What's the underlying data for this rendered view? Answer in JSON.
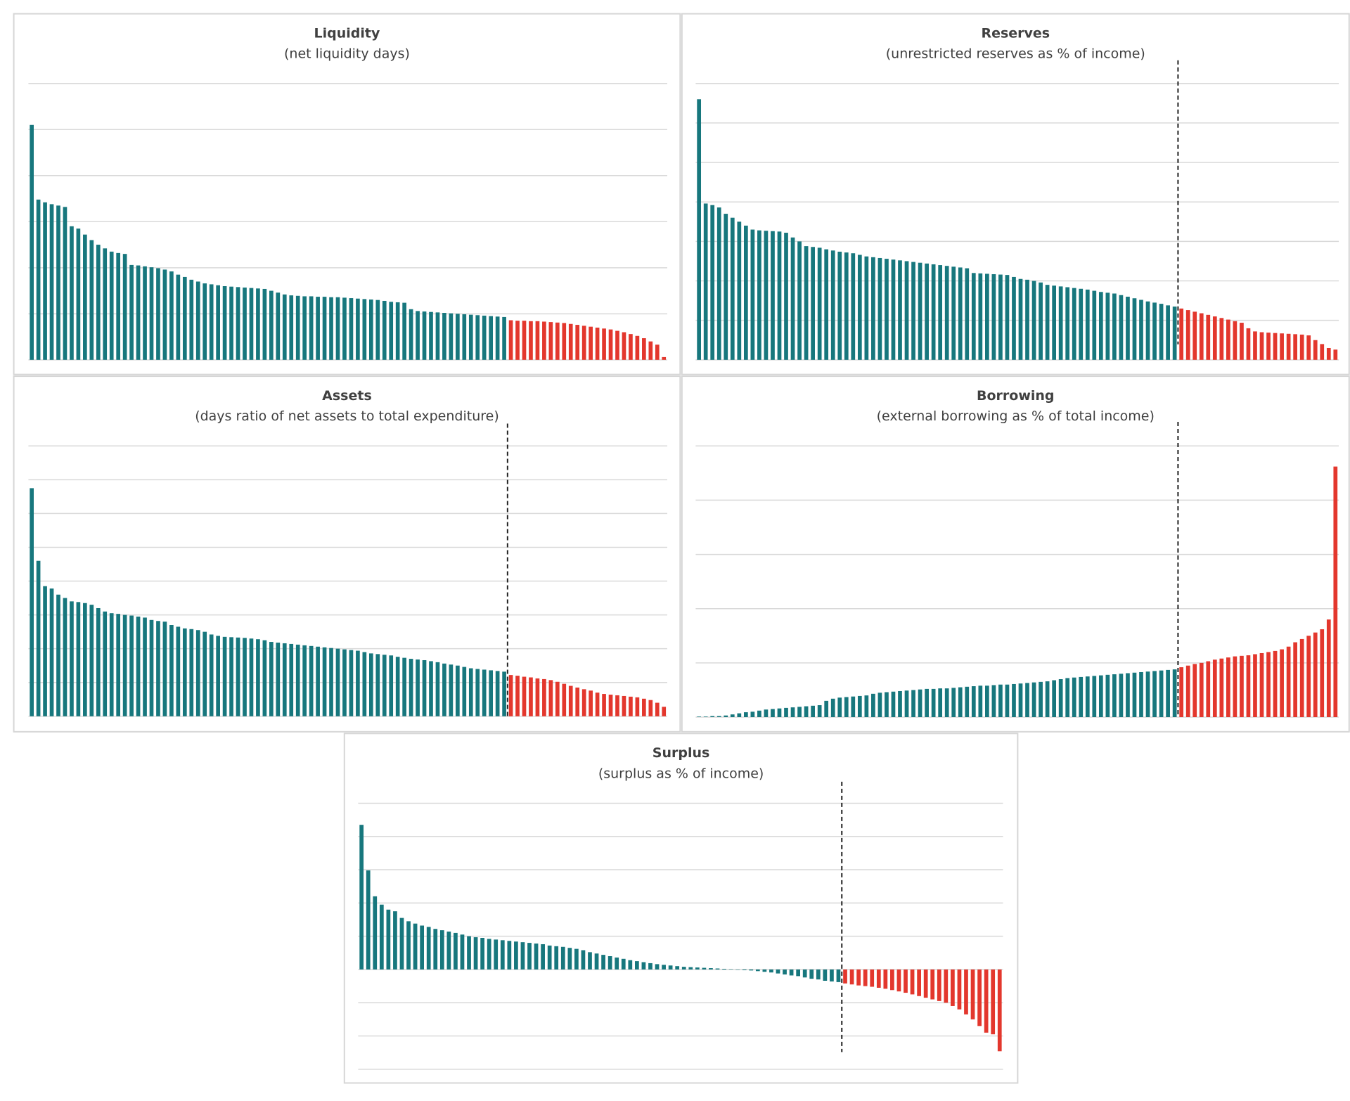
{
  "chart_data": [
    {
      "type": "bar",
      "title": "Liquidity",
      "subtitle": "(net liquidity days)",
      "ylim": [
        0,
        6
      ],
      "yticks": [
        0,
        1,
        2,
        3,
        4,
        5,
        6
      ],
      "grid": true,
      "divider": false,
      "series": [
        {
          "color": "#17777d",
          "values": [
            5.1,
            3.48,
            3.42,
            3.38,
            3.35,
            3.32,
            2.9,
            2.85,
            2.72,
            2.6,
            2.5,
            2.42,
            2.35,
            2.32,
            2.3,
            2.06,
            2.05,
            2.03,
            2.01,
            1.99,
            1.96,
            1.92,
            1.85,
            1.8,
            1.74,
            1.7,
            1.66,
            1.64,
            1.62,
            1.6,
            1.59,
            1.58,
            1.57,
            1.56,
            1.55,
            1.54,
            1.5,
            1.46,
            1.42,
            1.4,
            1.39,
            1.38,
            1.38,
            1.37,
            1.37,
            1.36,
            1.36,
            1.35,
            1.34,
            1.33,
            1.32,
            1.31,
            1.3,
            1.28,
            1.26,
            1.25,
            1.24,
            1.1,
            1.06,
            1.05,
            1.04,
            1.03,
            1.02,
            1.01,
            1.0,
            0.99,
            0.98,
            0.97,
            0.96,
            0.95,
            0.94,
            0.93
          ]
        },
        {
          "color": "#e3372d",
          "values": [
            0.86,
            0.85,
            0.85,
            0.84,
            0.84,
            0.83,
            0.82,
            0.81,
            0.8,
            0.78,
            0.76,
            0.74,
            0.72,
            0.7,
            0.68,
            0.66,
            0.63,
            0.6,
            0.56,
            0.52,
            0.47,
            0.4,
            0.33,
            0.06
          ]
        }
      ]
    },
    {
      "type": "bar",
      "title": "Reserves",
      "subtitle": "(unrestricted reserves as % of income)",
      "ylim": [
        0,
        7
      ],
      "yticks": [
        0,
        1,
        2,
        3,
        4,
        5,
        6,
        7
      ],
      "grid": true,
      "divider": true,
      "series": [
        {
          "color": "#17777d",
          "values": [
            6.6,
            3.96,
            3.92,
            3.86,
            3.7,
            3.6,
            3.5,
            3.4,
            3.3,
            3.28,
            3.27,
            3.26,
            3.25,
            3.22,
            3.1,
            3.0,
            2.88,
            2.86,
            2.84,
            2.8,
            2.77,
            2.74,
            2.72,
            2.7,
            2.66,
            2.62,
            2.6,
            2.58,
            2.56,
            2.54,
            2.52,
            2.5,
            2.48,
            2.46,
            2.44,
            2.42,
            2.4,
            2.38,
            2.36,
            2.34,
            2.32,
            2.2,
            2.19,
            2.18,
            2.17,
            2.16,
            2.15,
            2.1,
            2.05,
            2.03,
            2.0,
            1.96,
            1.9,
            1.88,
            1.86,
            1.84,
            1.82,
            1.8,
            1.78,
            1.75,
            1.72,
            1.7,
            1.68,
            1.64,
            1.6,
            1.56,
            1.52,
            1.48,
            1.45,
            1.42,
            1.38,
            1.35
          ]
        },
        {
          "color": "#e3372d",
          "values": [
            1.3,
            1.26,
            1.22,
            1.18,
            1.14,
            1.1,
            1.06,
            1.02,
            0.98,
            0.94,
            0.8,
            0.72,
            0.7,
            0.69,
            0.68,
            0.67,
            0.66,
            0.65,
            0.64,
            0.62,
            0.5,
            0.4,
            0.3,
            0.26
          ]
        }
      ]
    },
    {
      "type": "bar",
      "title": "Assets",
      "subtitle": "(days ratio of net assets to total expenditure)",
      "ylim": [
        0,
        8
      ],
      "yticks": [
        0,
        1,
        2,
        3,
        4,
        5,
        6,
        7,
        8
      ],
      "grid": true,
      "divider": true,
      "series": [
        {
          "color": "#17777d",
          "values": [
            6.75,
            4.6,
            3.85,
            3.78,
            3.6,
            3.5,
            3.4,
            3.38,
            3.35,
            3.3,
            3.2,
            3.1,
            3.05,
            3.03,
            3.0,
            2.98,
            2.95,
            2.92,
            2.85,
            2.82,
            2.8,
            2.7,
            2.65,
            2.6,
            2.58,
            2.55,
            2.5,
            2.42,
            2.38,
            2.35,
            2.34,
            2.33,
            2.32,
            2.3,
            2.28,
            2.25,
            2.2,
            2.18,
            2.16,
            2.14,
            2.12,
            2.1,
            2.08,
            2.06,
            2.04,
            2.02,
            2.0,
            1.98,
            1.96,
            1.94,
            1.9,
            1.86,
            1.84,
            1.82,
            1.8,
            1.76,
            1.73,
            1.7,
            1.68,
            1.66,
            1.63,
            1.6,
            1.56,
            1.53,
            1.5,
            1.46,
            1.42,
            1.4,
            1.38,
            1.36,
            1.34,
            1.32
          ]
        },
        {
          "color": "#e3372d",
          "values": [
            1.22,
            1.2,
            1.17,
            1.15,
            1.12,
            1.1,
            1.07,
            1.02,
            0.96,
            0.9,
            0.85,
            0.8,
            0.76,
            0.7,
            0.66,
            0.64,
            0.62,
            0.6,
            0.58,
            0.56,
            0.52,
            0.48,
            0.4,
            0.28
          ]
        }
      ]
    },
    {
      "type": "bar",
      "title": "Borrowing",
      "subtitle": "(external borrowing as % of total income)",
      "ylim": [
        0,
        5
      ],
      "yticks": [
        0,
        1,
        2,
        3,
        4,
        5
      ],
      "grid": true,
      "divider": true,
      "series": [
        {
          "color": "#17777d",
          "values": [
            0.01,
            0.01,
            0.02,
            0.02,
            0.03,
            0.05,
            0.07,
            0.09,
            0.1,
            0.12,
            0.14,
            0.15,
            0.16,
            0.17,
            0.18,
            0.19,
            0.2,
            0.21,
            0.22,
            0.3,
            0.34,
            0.36,
            0.37,
            0.38,
            0.39,
            0.4,
            0.43,
            0.45,
            0.46,
            0.47,
            0.48,
            0.49,
            0.5,
            0.51,
            0.52,
            0.52,
            0.53,
            0.53,
            0.54,
            0.55,
            0.56,
            0.57,
            0.58,
            0.58,
            0.59,
            0.6,
            0.6,
            0.61,
            0.62,
            0.63,
            0.64,
            0.65,
            0.66,
            0.68,
            0.7,
            0.72,
            0.73,
            0.74,
            0.75,
            0.76,
            0.77,
            0.78,
            0.79,
            0.8,
            0.81,
            0.82,
            0.83,
            0.84,
            0.85,
            0.86,
            0.87,
            0.88
          ]
        },
        {
          "color": "#e3372d",
          "values": [
            0.92,
            0.95,
            0.98,
            1.0,
            1.03,
            1.06,
            1.08,
            1.1,
            1.12,
            1.13,
            1.14,
            1.16,
            1.18,
            1.2,
            1.22,
            1.25,
            1.3,
            1.38,
            1.44,
            1.5,
            1.56,
            1.62,
            1.8,
            4.62
          ]
        }
      ]
    },
    {
      "type": "bar",
      "title": "Surplus",
      "subtitle": "(surplus as % of income)",
      "ylim": [
        -3,
        5
      ],
      "yticks": [
        -3,
        -2,
        -1,
        0,
        1,
        2,
        3,
        4,
        5
      ],
      "grid": true,
      "divider": true,
      "series": [
        {
          "color": "#17777d",
          "values": [
            4.35,
            2.98,
            2.2,
            1.95,
            1.8,
            1.75,
            1.55,
            1.45,
            1.38,
            1.32,
            1.28,
            1.22,
            1.18,
            1.14,
            1.1,
            1.05,
            1.0,
            0.97,
            0.95,
            0.92,
            0.9,
            0.88,
            0.86,
            0.84,
            0.82,
            0.8,
            0.78,
            0.76,
            0.72,
            0.7,
            0.68,
            0.65,
            0.62,
            0.58,
            0.52,
            0.48,
            0.44,
            0.4,
            0.36,
            0.32,
            0.28,
            0.25,
            0.22,
            0.19,
            0.16,
            0.14,
            0.12,
            0.1,
            0.08,
            0.07,
            0.06,
            0.05,
            0.04,
            0.03,
            0.02,
            0.01,
            -0.01,
            -0.02,
            -0.03,
            -0.05,
            -0.07,
            -0.09,
            -0.12,
            -0.15,
            -0.18,
            -0.2,
            -0.24,
            -0.28,
            -0.3,
            -0.34,
            -0.36,
            -0.38
          ]
        },
        {
          "color": "#e3372d",
          "values": [
            -0.42,
            -0.45,
            -0.48,
            -0.5,
            -0.52,
            -0.55,
            -0.58,
            -0.62,
            -0.66,
            -0.7,
            -0.75,
            -0.8,
            -0.85,
            -0.9,
            -0.95,
            -1.0,
            -1.1,
            -1.2,
            -1.35,
            -1.5,
            -1.7,
            -1.9,
            -1.95,
            -2.46
          ]
        }
      ]
    }
  ]
}
